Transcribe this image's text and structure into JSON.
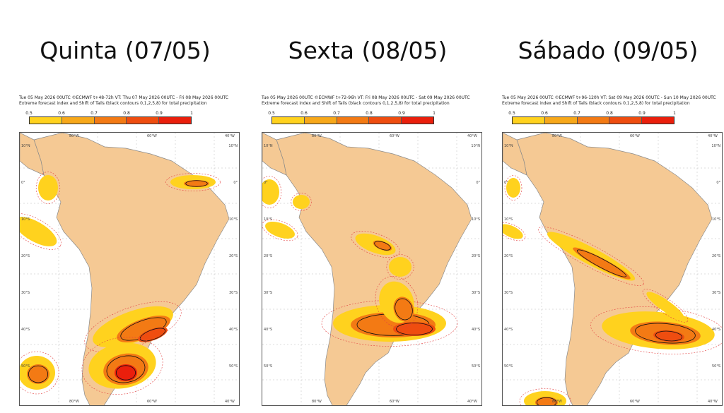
{
  "colors": {
    "land": "#f5c994",
    "ocean": "#ffffff",
    "scale": [
      "#ffff33",
      "#ffd21e",
      "#f7a81a",
      "#f37a14",
      "#ef4d10",
      "#ea1f0c"
    ]
  },
  "colorbar_labels": [
    "0.5",
    "0.6",
    "0.7",
    "0.8",
    "0.9",
    "1"
  ],
  "lat_labels": [
    "10°N",
    "0°",
    "10°S",
    "20°S",
    "30°S",
    "40°S",
    "50°S"
  ],
  "lon_labels": [
    "80°W",
    "60°W",
    "40°W"
  ],
  "panels": [
    {
      "title": "Quinta (07/05)",
      "header_line1": "Tue 05 May 2026 00UTC ©ECMWF t+48-72h  VT: Thu 07 May 2026 00UTC - Fri 08 May 2026 00UTC",
      "header_line2": "Extreme forecast index and Shift of Tails (black contours 0,1,2,5,8) for total precipitation"
    },
    {
      "title": "Sexta (08/05)",
      "header_line1": "Tue 05 May 2026 00UTC ©ECMWF t+72-96h  VT: Fri 08 May 2026 00UTC - Sat 09 May 2026 00UTC",
      "header_line2": "Extreme forecast index and Shift of Tails (black contours 0,1,2,5,8) for total precipitation"
    },
    {
      "title": "Sábado (09/05)",
      "header_line1": "Tue 05 May 2026 00UTC ©ECMWF t+96-120h  VT: Sat 09 May 2026 00UTC - Sun 10 May 2026 00UTC",
      "header_line2": "Extreme forecast index and Shift of Tails (black contours 0,1,2,5,8) for total precipitation"
    }
  ]
}
